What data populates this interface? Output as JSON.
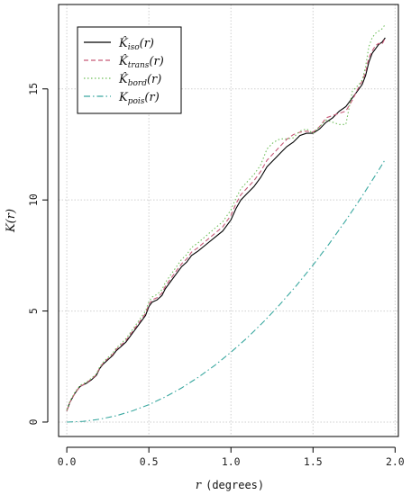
{
  "chart_data": {
    "type": "line",
    "xlabel_var": "r",
    "xlabel_unit": "(degrees)",
    "ylabel": "K(r)",
    "xlim": [
      -0.05,
      2.02
    ],
    "ylim": [
      -0.65,
      18.8
    ],
    "xticks": [
      0.0,
      0.5,
      1.0,
      1.5,
      2.0
    ],
    "xtick_labels": [
      "0.0",
      "0.5",
      "1.0",
      "1.5",
      "2.0"
    ],
    "yticks": [
      0,
      5,
      10,
      15
    ],
    "ytick_labels": [
      "0",
      "5",
      "10",
      "15"
    ],
    "grid": true,
    "legend_position": "top-left",
    "series": [
      {
        "name": "K̂iso(r)",
        "base": "K̂",
        "sub": "iso",
        "color": "#000000",
        "dash": "",
        "x": [
          0.0,
          0.02,
          0.05,
          0.08,
          0.12,
          0.15,
          0.18,
          0.2,
          0.22,
          0.25,
          0.28,
          0.3,
          0.33,
          0.36,
          0.4,
          0.44,
          0.48,
          0.5,
          0.52,
          0.55,
          0.58,
          0.6,
          0.63,
          0.66,
          0.7,
          0.73,
          0.76,
          0.8,
          0.85,
          0.9,
          0.95,
          1.0,
          1.03,
          1.06,
          1.1,
          1.14,
          1.18,
          1.22,
          1.26,
          1.3,
          1.34,
          1.38,
          1.42,
          1.46,
          1.5,
          1.54,
          1.58,
          1.62,
          1.66,
          1.7,
          1.74,
          1.78,
          1.8,
          1.82,
          1.84,
          1.86,
          1.88,
          1.9,
          1.92,
          1.94
        ],
        "y": [
          0.5,
          0.9,
          1.3,
          1.6,
          1.75,
          1.9,
          2.1,
          2.4,
          2.6,
          2.8,
          3.0,
          3.2,
          3.4,
          3.6,
          4.0,
          4.4,
          4.8,
          5.2,
          5.4,
          5.5,
          5.7,
          6.0,
          6.3,
          6.6,
          7.0,
          7.2,
          7.5,
          7.7,
          8.0,
          8.3,
          8.6,
          9.1,
          9.6,
          10.0,
          10.3,
          10.6,
          11.0,
          11.5,
          11.8,
          12.1,
          12.4,
          12.6,
          12.9,
          13.0,
          13.0,
          13.2,
          13.5,
          13.7,
          14.0,
          14.2,
          14.6,
          15.0,
          15.2,
          15.6,
          16.2,
          16.6,
          16.8,
          17.0,
          17.1,
          17.3
        ]
      },
      {
        "name": "K̂trans(r)",
        "base": "K̂",
        "sub": "trans",
        "color": "#c75a78",
        "dash": "5,3",
        "x": [
          0.0,
          0.02,
          0.05,
          0.08,
          0.12,
          0.15,
          0.18,
          0.2,
          0.22,
          0.25,
          0.28,
          0.3,
          0.33,
          0.36,
          0.4,
          0.44,
          0.48,
          0.5,
          0.52,
          0.55,
          0.58,
          0.6,
          0.63,
          0.66,
          0.7,
          0.73,
          0.76,
          0.8,
          0.85,
          0.9,
          0.95,
          1.0,
          1.03,
          1.06,
          1.1,
          1.14,
          1.18,
          1.22,
          1.26,
          1.3,
          1.34,
          1.38,
          1.42,
          1.46,
          1.5,
          1.54,
          1.58,
          1.62,
          1.66,
          1.7,
          1.74,
          1.78,
          1.8,
          1.82,
          1.84,
          1.86,
          1.88,
          1.9,
          1.92,
          1.94
        ],
        "y": [
          0.5,
          0.9,
          1.3,
          1.6,
          1.77,
          1.93,
          2.13,
          2.43,
          2.64,
          2.85,
          3.05,
          3.26,
          3.46,
          3.67,
          4.08,
          4.48,
          4.89,
          5.3,
          5.5,
          5.6,
          5.81,
          6.11,
          6.42,
          6.73,
          7.13,
          7.34,
          7.65,
          7.86,
          8.17,
          8.48,
          8.79,
          9.3,
          9.82,
          10.23,
          10.55,
          10.86,
          11.27,
          11.79,
          12.1,
          12.42,
          12.73,
          12.94,
          13.05,
          13.1,
          13.05,
          13.3,
          13.7,
          13.8,
          13.9,
          14.0,
          14.5,
          15.1,
          15.35,
          15.75,
          16.4,
          16.7,
          16.95,
          17.05,
          17.0,
          17.3
        ]
      },
      {
        "name": "K̂bord(r)",
        "base": "K̂",
        "sub": "bord",
        "color": "#6fbf5a",
        "dash": "1.5,2.5",
        "x": [
          0.0,
          0.02,
          0.05,
          0.08,
          0.12,
          0.15,
          0.18,
          0.2,
          0.22,
          0.25,
          0.28,
          0.3,
          0.33,
          0.36,
          0.4,
          0.44,
          0.48,
          0.5,
          0.52,
          0.55,
          0.58,
          0.6,
          0.63,
          0.66,
          0.7,
          0.73,
          0.76,
          0.8,
          0.85,
          0.9,
          0.95,
          1.0,
          1.03,
          1.06,
          1.1,
          1.14,
          1.18,
          1.22,
          1.26,
          1.3,
          1.34,
          1.38,
          1.42,
          1.46,
          1.5,
          1.54,
          1.58,
          1.62,
          1.66,
          1.7,
          1.74,
          1.78,
          1.8,
          1.82,
          1.84,
          1.86,
          1.88,
          1.9,
          1.92,
          1.94
        ],
        "y": [
          0.55,
          0.95,
          1.35,
          1.65,
          1.8,
          1.97,
          2.17,
          2.47,
          2.68,
          2.9,
          3.1,
          3.32,
          3.53,
          3.75,
          4.16,
          4.58,
          5.0,
          5.42,
          5.63,
          5.75,
          5.96,
          6.28,
          6.59,
          6.91,
          7.33,
          7.54,
          7.86,
          8.07,
          8.39,
          8.71,
          9.02,
          9.55,
          10.07,
          10.5,
          10.82,
          11.14,
          11.56,
          12.3,
          12.6,
          12.75,
          12.75,
          12.8,
          13.1,
          13.2,
          13.0,
          13.3,
          13.6,
          13.5,
          13.4,
          13.4,
          14.9,
          15.2,
          15.4,
          16.0,
          16.9,
          17.3,
          17.5,
          17.6,
          17.7,
          17.9
        ]
      },
      {
        "name": "Kpois(r)",
        "base": "K",
        "sub": "pois",
        "color": "#3aa8a0",
        "dash": "7,3,1.5,3",
        "x": [
          0.0,
          0.1,
          0.2,
          0.3,
          0.4,
          0.5,
          0.6,
          0.7,
          0.8,
          0.9,
          1.0,
          1.1,
          1.2,
          1.3,
          1.4,
          1.5,
          1.6,
          1.7,
          1.8,
          1.9,
          1.94
        ],
        "y": [
          0.0,
          0.031,
          0.126,
          0.283,
          0.503,
          0.785,
          1.131,
          1.539,
          2.011,
          2.545,
          3.142,
          3.801,
          4.524,
          5.309,
          6.158,
          7.069,
          8.042,
          9.079,
          10.179,
          11.341,
          11.823
        ]
      }
    ]
  }
}
